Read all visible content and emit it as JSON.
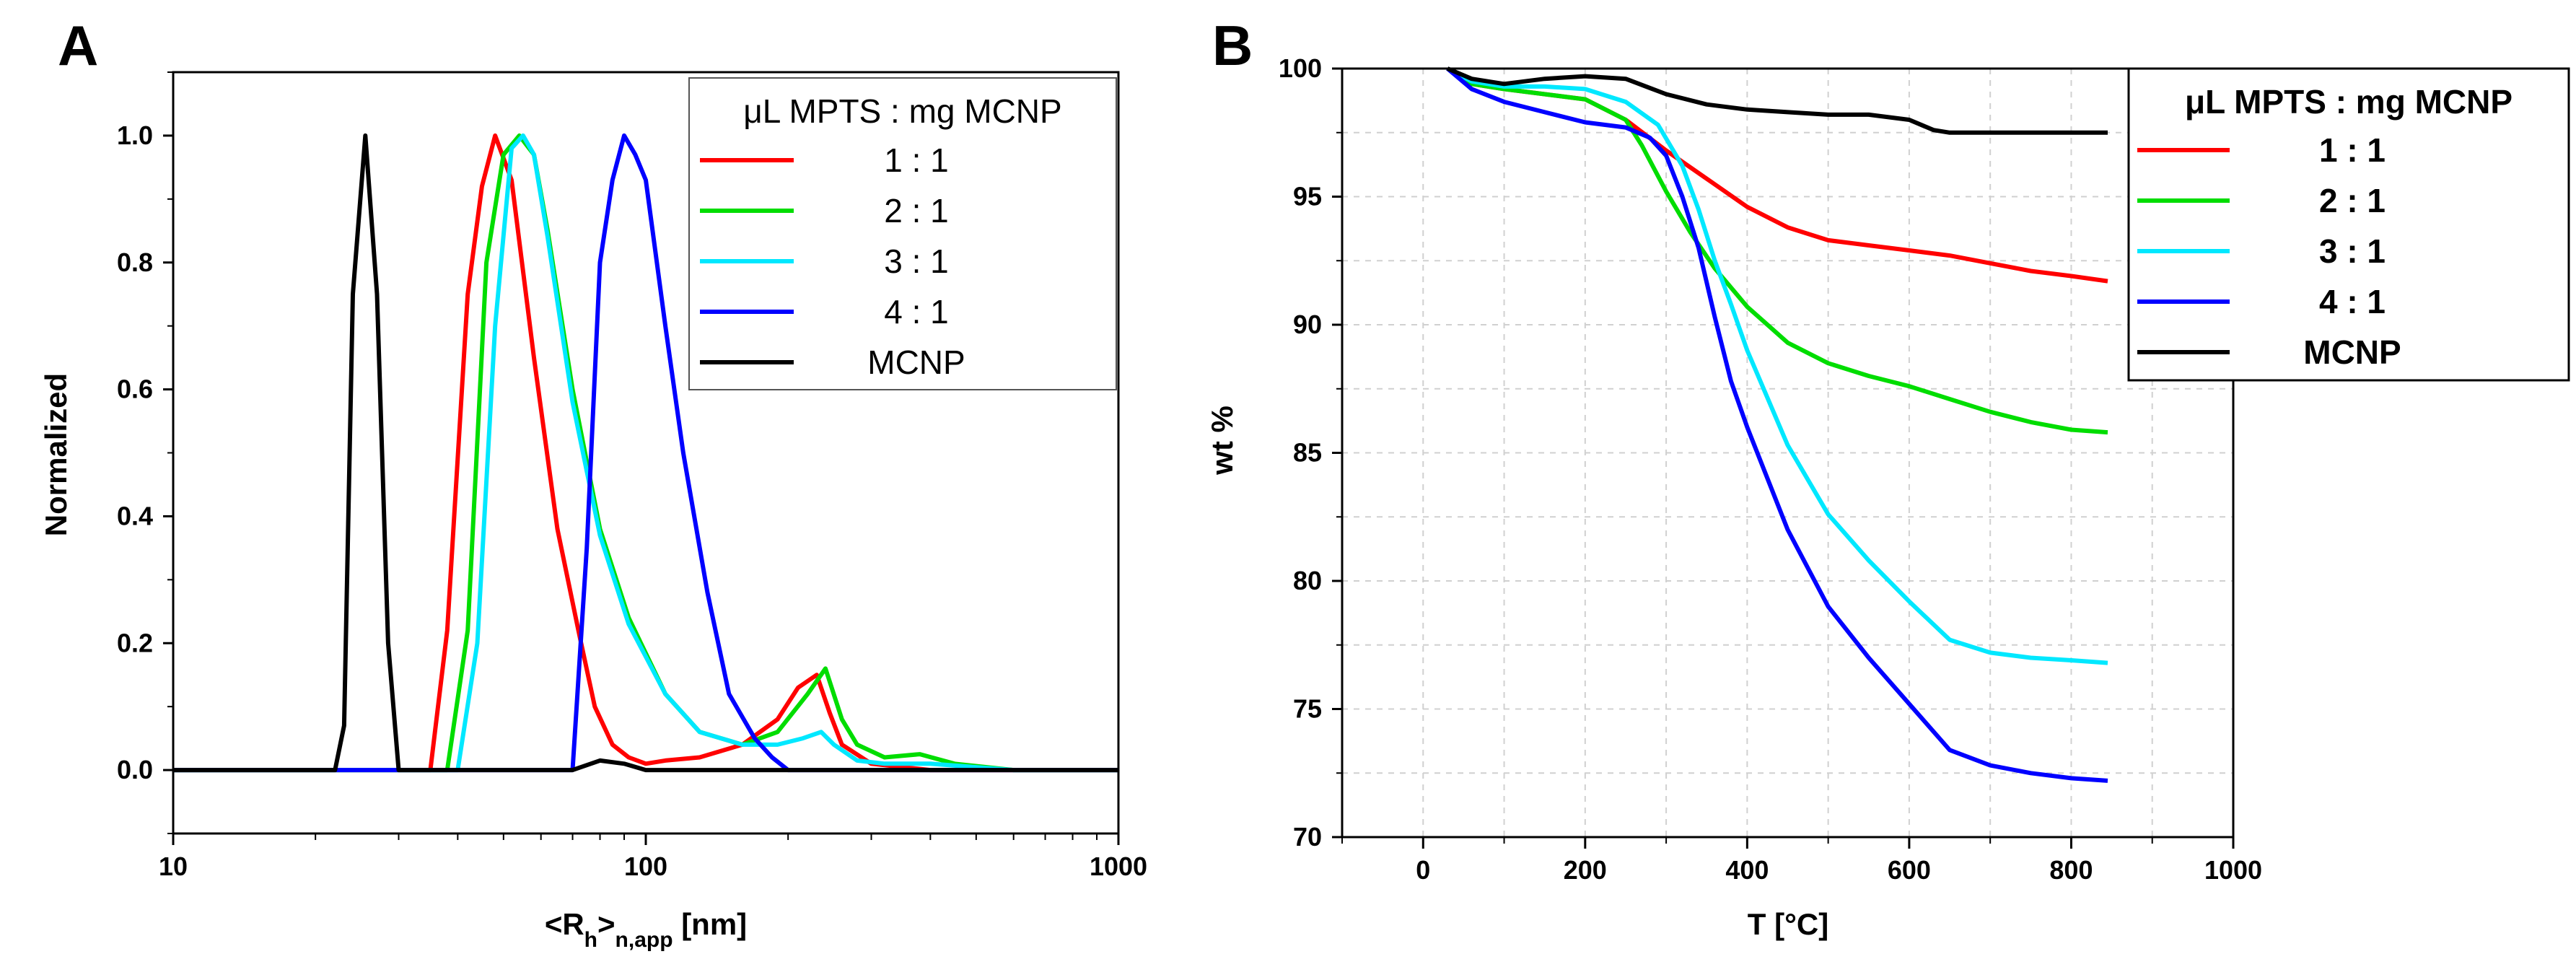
{
  "chart_data": [
    {
      "panel": "A",
      "type": "line",
      "xscale": "log",
      "xlabel": "<Rh>n,app [nm]",
      "xlabel_main": "<R",
      "xlabel_sub1": "h",
      "xlabel_mid": ">",
      "xlabel_sub2": "n,app",
      "xlabel_unit": " [nm]",
      "ylabel": "Normalized",
      "xlim": [
        10,
        1000
      ],
      "ylim": [
        -0.1,
        1.1
      ],
      "xticks": [
        "10",
        "100",
        "1000"
      ],
      "yticks": [
        "0.0",
        "0.2",
        "0.4",
        "0.6",
        "0.8",
        "1.0"
      ],
      "legend_title": "μL MPTS : mg MCNP",
      "legend_position": "top-right",
      "series": [
        {
          "name": "1 : 1",
          "color": "#ff0000",
          "x": [
            10,
            35,
            38,
            42,
            45,
            48,
            52,
            58,
            65,
            72,
            78,
            85,
            92,
            100,
            110,
            130,
            160,
            190,
            210,
            230,
            245,
            260,
            300,
            400,
            600,
            1000
          ],
          "y": [
            0,
            0,
            0.22,
            0.75,
            0.92,
            1.0,
            0.93,
            0.65,
            0.38,
            0.22,
            0.1,
            0.04,
            0.02,
            0.01,
            0.015,
            0.02,
            0.04,
            0.08,
            0.13,
            0.15,
            0.09,
            0.04,
            0.01,
            0,
            0,
            0
          ]
        },
        {
          "name": "2 : 1",
          "color": "#00dd00",
          "x": [
            10,
            38,
            42,
            46,
            50,
            54,
            58,
            62,
            70,
            80,
            92,
            110,
            130,
            160,
            190,
            220,
            240,
            260,
            280,
            320,
            380,
            450,
            600,
            1000
          ],
          "y": [
            0,
            0,
            0.22,
            0.8,
            0.97,
            1.0,
            0.97,
            0.85,
            0.6,
            0.38,
            0.24,
            0.12,
            0.06,
            0.04,
            0.06,
            0.12,
            0.16,
            0.08,
            0.04,
            0.02,
            0.025,
            0.01,
            0,
            0
          ]
        },
        {
          "name": "3 : 1",
          "color": "#00e8ff",
          "x": [
            10,
            40,
            44,
            48,
            52,
            55,
            58,
            62,
            70,
            80,
            92,
            110,
            130,
            160,
            190,
            215,
            235,
            250,
            280,
            320,
            400,
            600,
            1000
          ],
          "y": [
            0,
            0,
            0.2,
            0.7,
            0.98,
            1.0,
            0.97,
            0.84,
            0.58,
            0.37,
            0.23,
            0.12,
            0.06,
            0.04,
            0.04,
            0.05,
            0.06,
            0.04,
            0.015,
            0.01,
            0.01,
            0,
            0
          ]
        },
        {
          "name": "4 : 1",
          "color": "#0000ff",
          "x": [
            10,
            70,
            75,
            80,
            85,
            90,
            95,
            100,
            110,
            120,
            135,
            150,
            170,
            185,
            200,
            1000
          ],
          "y": [
            0,
            0,
            0.35,
            0.8,
            0.93,
            1.0,
            0.97,
            0.93,
            0.7,
            0.5,
            0.28,
            0.12,
            0.05,
            0.02,
            0,
            0
          ]
        },
        {
          "name": "MCNP",
          "color": "#000000",
          "x": [
            10,
            22,
            23,
            24,
            25.5,
            27,
            28.5,
            30,
            70,
            80,
            90,
            100,
            1000
          ],
          "y": [
            0,
            0,
            0.07,
            0.75,
            1.0,
            0.75,
            0.2,
            0,
            0,
            0.015,
            0.01,
            0,
            0
          ]
        }
      ]
    },
    {
      "panel": "B",
      "type": "line",
      "xlabel": "T [°C]",
      "ylabel": "wt %",
      "xlim": [
        -100,
        1000
      ],
      "ylim": [
        70,
        100
      ],
      "xticks": [
        "0",
        "200",
        "400",
        "600",
        "800",
        "1000"
      ],
      "yticks": [
        "70",
        "75",
        "80",
        "85",
        "90",
        "95",
        "100"
      ],
      "legend_title": "μL MPTS : mg MCNP",
      "legend_position": "top-right",
      "series": [
        {
          "name": "1 : 1",
          "color": "#ff0000",
          "x": [
            30,
            60,
            100,
            150,
            200,
            250,
            300,
            350,
            400,
            450,
            500,
            550,
            600,
            650,
            700,
            750,
            800,
            845
          ],
          "y": [
            100,
            99.4,
            99.2,
            99.0,
            98.8,
            98.0,
            96.8,
            95.7,
            94.6,
            93.8,
            93.3,
            93.1,
            92.9,
            92.7,
            92.4,
            92.1,
            91.9,
            91.7
          ]
        },
        {
          "name": "2 : 1",
          "color": "#00dd00",
          "x": [
            30,
            60,
            100,
            150,
            200,
            250,
            270,
            300,
            330,
            360,
            400,
            450,
            500,
            550,
            600,
            650,
            700,
            750,
            800,
            845
          ],
          "y": [
            100,
            99.4,
            99.2,
            99.0,
            98.8,
            98.0,
            97.0,
            95.2,
            93.6,
            92.2,
            90.7,
            89.3,
            88.5,
            88.0,
            87.6,
            87.1,
            86.6,
            86.2,
            85.9,
            85.8
          ]
        },
        {
          "name": "3 : 1",
          "color": "#00e8ff",
          "x": [
            30,
            60,
            100,
            150,
            200,
            250,
            290,
            320,
            340,
            360,
            380,
            400,
            450,
            500,
            550,
            600,
            650,
            700,
            750,
            800,
            845
          ],
          "y": [
            100,
            99.5,
            99.3,
            99.3,
            99.2,
            98.7,
            97.8,
            96.2,
            94.5,
            92.5,
            90.8,
            89.0,
            85.3,
            82.6,
            80.8,
            79.2,
            77.7,
            77.2,
            77.0,
            76.9,
            76.8
          ]
        },
        {
          "name": "4 : 1",
          "color": "#0000ff",
          "x": [
            30,
            60,
            100,
            150,
            200,
            250,
            280,
            300,
            320,
            340,
            360,
            380,
            400,
            450,
            500,
            550,
            600,
            650,
            700,
            750,
            800,
            845
          ],
          "y": [
            100,
            99.2,
            98.7,
            98.3,
            97.9,
            97.7,
            97.3,
            96.6,
            95.0,
            93.0,
            90.3,
            87.8,
            86.0,
            82.0,
            79.0,
            77.0,
            75.2,
            73.4,
            72.8,
            72.5,
            72.3,
            72.2
          ]
        },
        {
          "name": "MCNP",
          "color": "#000000",
          "x": [
            30,
            60,
            100,
            150,
            200,
            250,
            300,
            350,
            400,
            450,
            500,
            550,
            600,
            630,
            650,
            700,
            750,
            800,
            845
          ],
          "y": [
            100,
            99.6,
            99.4,
            99.6,
            99.7,
            99.6,
            99.0,
            98.6,
            98.4,
            98.3,
            98.2,
            98.2,
            98.0,
            97.6,
            97.5,
            97.5,
            97.5,
            97.5,
            97.5
          ]
        }
      ]
    }
  ]
}
